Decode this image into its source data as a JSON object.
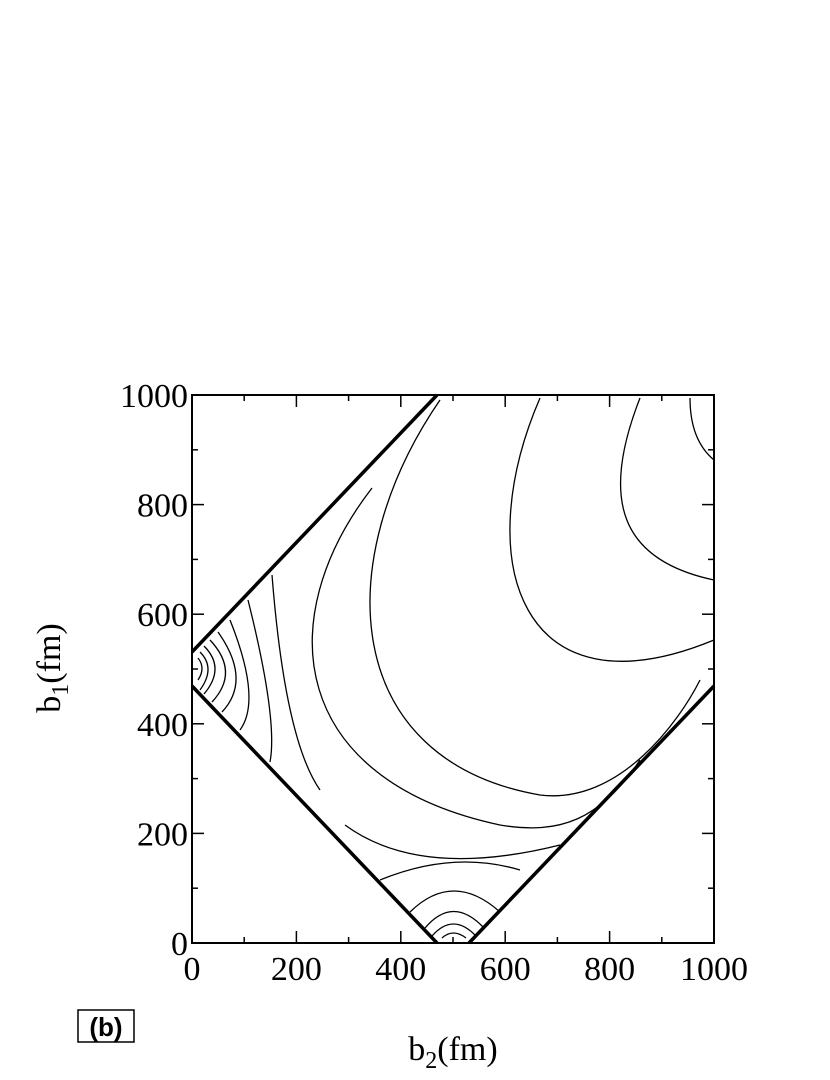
{
  "chart_data": {
    "type": "contour",
    "panel_label": "(b)",
    "xlabel": {
      "text": "b",
      "subscript": "2",
      "suffix": "(fm)"
    },
    "ylabel": {
      "text": "b",
      "subscript": "1",
      "suffix": "(fm)"
    },
    "xlim": [
      0,
      1000
    ],
    "ylim": [
      0,
      1000
    ],
    "xticks": [
      0,
      200,
      400,
      600,
      800,
      1000
    ],
    "yticks": [
      0,
      200,
      400,
      600,
      800,
      1000
    ],
    "xminorticks": [
      100,
      300,
      500,
      700,
      900
    ],
    "yminorticks": [
      100,
      300,
      500,
      700,
      900
    ]
  }
}
